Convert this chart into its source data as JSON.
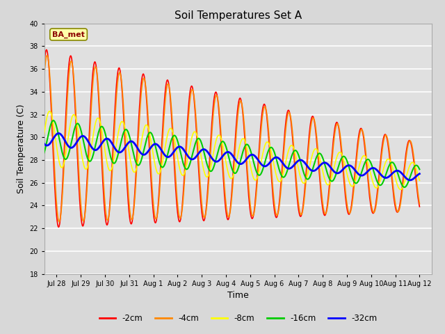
{
  "title": "Soil Temperatures Set A",
  "xlabel": "Time",
  "ylabel": "Soil Temperature (C)",
  "ylim": [
    18,
    40
  ],
  "yticks": [
    18,
    20,
    22,
    24,
    26,
    28,
    30,
    32,
    34,
    36,
    38,
    40
  ],
  "xtick_labels": [
    "Jul 28",
    "Jul 29",
    "Jul 30",
    "Jul 31",
    "Aug 1",
    "Aug 2",
    "Aug 3",
    "Aug 4",
    "Aug 5",
    "Aug 6",
    "Aug 7",
    "Aug 8",
    "Aug 9",
    "Aug 10",
    "Aug 11",
    "Aug 12"
  ],
  "legend_labels": [
    "-2cm",
    "-4cm",
    "-8cm",
    "-16cm",
    "-32cm"
  ],
  "line_colors": [
    "#ff0000",
    "#ff8800",
    "#ffff00",
    "#00cc00",
    "#0000ff"
  ],
  "line_widths": [
    1.2,
    1.2,
    1.2,
    1.5,
    2.0
  ],
  "annotation_text": "BA_met",
  "bg_color": "#e0e0e0",
  "fig_bg_color": "#d8d8d8",
  "title_fontsize": 11,
  "axis_fontsize": 9,
  "tick_fontsize": 7
}
